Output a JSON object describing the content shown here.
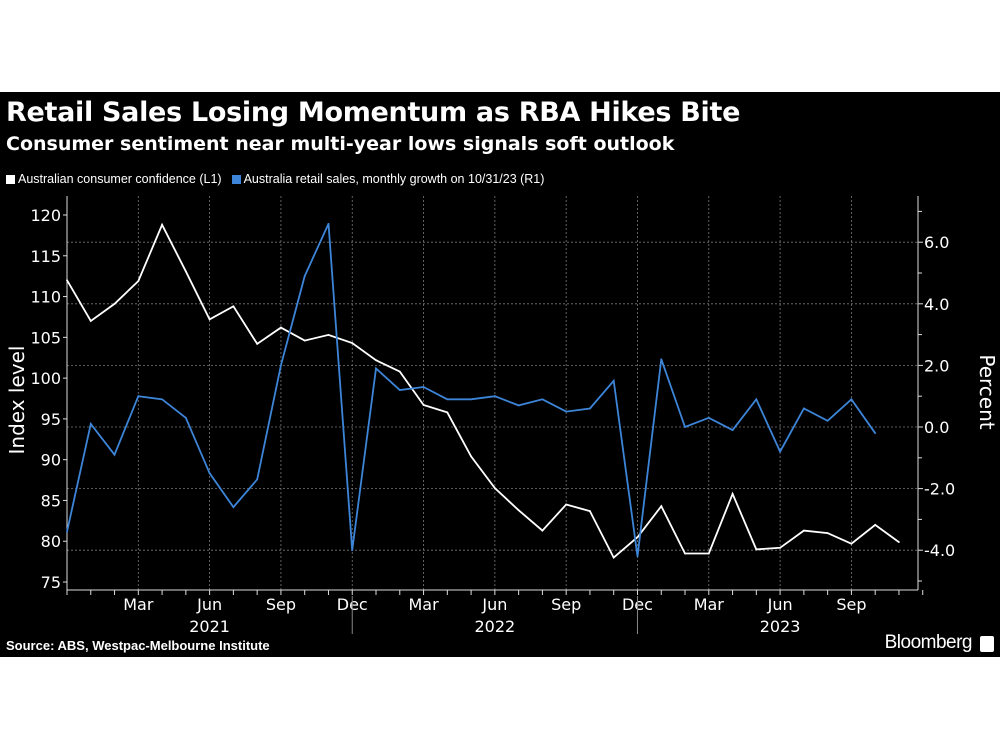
{
  "title": "Retail Sales Losing Momentum as RBA Hikes Bite",
  "subtitle": "Consumer sentiment near multi-year lows signals soft outlook",
  "source": "Source: ABS, Westpac-Melbourne Institute",
  "brand": "Bloomberg",
  "colors": {
    "background": "#000000",
    "confidence": "#ffffff",
    "retail": "#3d85d8",
    "grid": "#666666"
  },
  "chart_data": {
    "type": "line",
    "legend_placement": "top-left",
    "grid": true,
    "x_axis": {
      "month_labels": [
        "Mar",
        "Jun",
        "Sep",
        "Dec",
        "Mar",
        "Jun",
        "Sep",
        "Dec",
        "Mar",
        "Jun",
        "Sep"
      ],
      "year_labels": [
        "2021",
        "2022",
        "2023"
      ]
    },
    "y_left": {
      "label": "Index level",
      "range": [
        74,
        122
      ],
      "ticks": [
        "120",
        "115",
        "110",
        "105",
        "100",
        "95",
        "90",
        "85",
        "80",
        "75"
      ]
    },
    "y_right": {
      "label": "Percent",
      "range": [
        -5.2,
        7.6
      ],
      "ticks": [
        "6.0",
        "4.0",
        "2.0",
        "0.0",
        "-2.0",
        "-4.0"
      ]
    },
    "series": [
      {
        "name": "Australian consumer confidence (L1)",
        "axis": "left",
        "x": [
          "2020-12",
          "2021-01",
          "2021-02",
          "2021-03",
          "2021-04",
          "2021-05",
          "2021-06",
          "2021-07",
          "2021-08",
          "2021-09",
          "2021-10",
          "2021-11",
          "2021-12",
          "2022-01",
          "2022-02",
          "2022-03",
          "2022-04",
          "2022-05",
          "2022-06",
          "2022-07",
          "2022-08",
          "2022-09",
          "2022-10",
          "2022-11",
          "2022-12",
          "2023-01",
          "2023-02",
          "2023-03",
          "2023-04",
          "2023-05",
          "2023-06",
          "2023-07",
          "2023-08",
          "2023-09",
          "2023-10",
          "2023-11"
        ],
        "values": [
          112.0,
          107.0,
          109.1,
          111.9,
          118.8,
          113.1,
          107.2,
          108.8,
          104.2,
          106.2,
          104.6,
          105.3,
          104.3,
          102.2,
          100.8,
          96.7,
          95.8,
          90.4,
          86.5,
          83.8,
          81.3,
          84.5,
          83.7,
          78.0,
          80.5,
          84.3,
          78.5,
          78.5,
          85.8,
          79.0,
          79.2,
          81.3,
          81.0,
          79.7,
          82.0,
          79.9
        ]
      },
      {
        "name": "Australia retail sales, monthly growth on 10/31/23 (R1)",
        "axis": "right",
        "x": [
          "2020-12",
          "2021-01",
          "2021-02",
          "2021-03",
          "2021-04",
          "2021-05",
          "2021-06",
          "2021-07",
          "2021-08",
          "2021-09",
          "2021-10",
          "2021-11",
          "2021-12",
          "2022-01",
          "2022-02",
          "2022-03",
          "2022-04",
          "2022-05",
          "2022-06",
          "2022-07",
          "2022-08",
          "2022-09",
          "2022-10",
          "2022-11",
          "2022-12",
          "2023-01",
          "2023-02",
          "2023-03",
          "2023-04",
          "2023-05",
          "2023-06",
          "2023-07",
          "2023-08",
          "2023-09",
          "2023-10"
        ],
        "values": [
          -3.4,
          0.1,
          -0.9,
          1.0,
          0.9,
          0.3,
          -1.5,
          -2.6,
          -1.7,
          2.0,
          4.9,
          6.6,
          -4.0,
          1.9,
          1.2,
          1.3,
          0.9,
          0.9,
          1.0,
          0.7,
          0.9,
          0.5,
          0.6,
          1.5,
          -4.2,
          2.2,
          0.0,
          0.3,
          -0.1,
          0.9,
          -0.8,
          0.6,
          0.2,
          0.9,
          -0.2
        ]
      }
    ]
  }
}
